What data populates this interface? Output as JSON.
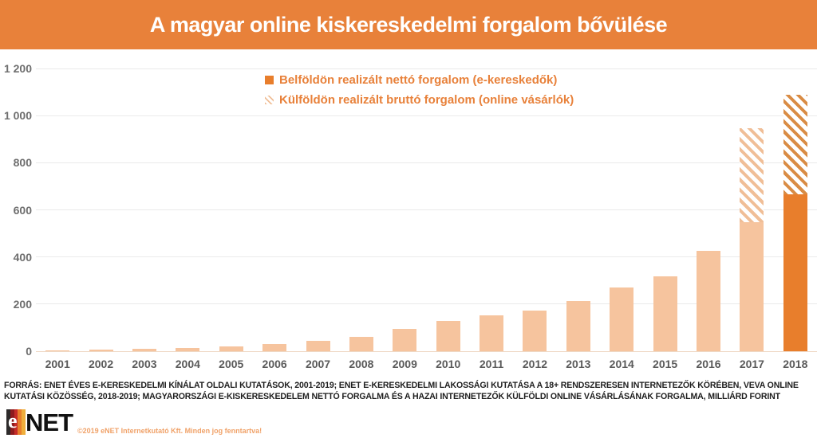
{
  "header": {
    "title": "A magyar online kiskereskedelmi forgalom bővülése"
  },
  "legend": [
    {
      "label": "Belföldön realizált nettó forgalom (e-kereskedők)",
      "swatch": "solid"
    },
    {
      "label": "Külföldön realizált bruttó forgalom (online vásárlók)",
      "swatch": "hatched"
    }
  ],
  "chart_data": {
    "type": "bar",
    "stacked": true,
    "title": "A magyar online kiskereskedelmi forgalom bővülése",
    "unit": "milliárd forint",
    "categories": [
      "2001",
      "2002",
      "2003",
      "2004",
      "2005",
      "2006",
      "2007",
      "2008",
      "2009",
      "2010",
      "2011",
      "2012",
      "2013",
      "2014",
      "2015",
      "2016",
      "2017",
      "2018"
    ],
    "series": [
      {
        "name": "Belföldön realizált nettó forgalom (e-kereskedők)",
        "values": [
          3,
          6,
          10,
          14,
          20,
          32,
          45,
          60,
          95,
          130,
          152,
          172,
          213,
          272,
          318,
          425,
          548,
          665
        ]
      },
      {
        "name": "Külföldön realizált bruttó forgalom (online vásárlók)",
        "values": [
          0,
          0,
          0,
          0,
          0,
          0,
          0,
          0,
          0,
          0,
          0,
          0,
          0,
          0,
          0,
          0,
          400,
          425
        ]
      }
    ],
    "ylim": [
      0,
      1200
    ],
    "yticks": [
      0,
      200,
      400,
      600,
      800,
      1000,
      1200
    ],
    "ytick_labels": [
      "0",
      "200",
      "400",
      "600",
      "800",
      "1 000",
      "1 200"
    ],
    "grid": "horizontal",
    "legend_position": "top-center",
    "highlight_category": "2018"
  },
  "colors": {
    "accent": "#E8813A",
    "bar_light": "#F6C49E",
    "bar_dark": "#E87E2C",
    "hatch_light": "#F0BE97",
    "hatch_dark": "#D98C45",
    "grid": "#EAEAEA",
    "baseline": "#EFD8C5",
    "axis_text": "#6E6E6E",
    "xaxis_text": "#5A5A5A",
    "footer_text": "#1E1E1E",
    "copyright_text": "#F0A269",
    "logo_stripes": [
      "#2E2B2B",
      "#8E1B1E",
      "#C52B28",
      "#E87E2C",
      "#EEAE3B"
    ]
  },
  "footer": {
    "source": "FORRÁS: ENET ÉVES E-KERESKEDELMI KÍNÁLAT OLDALI KUTATÁSOK, 2001-2019; ENET E-KERESKEDELMI LAKOSSÁGI KUTATÁSA A 18+ RENDSZERESEN INTERNETEZŐK KÖRÉBEN, VEVA ONLINE KUTATÁSI KÖZÖSSÉG, 2018-2019; MAGYARORSZÁGI E-KISKERESKEDELEM NETTÓ FORGALMA ÉS A HAZAI INTERNETEZŐK KÜLFÖLDI ONLINE VÁSÁRLÁSÁNAK FORGALMA, MILLIÁRD FORINT",
    "brand": "NET",
    "brand_e": "e",
    "copyright": "©2019 eNET Internetkutató Kft. Minden jog fenntartva!"
  }
}
